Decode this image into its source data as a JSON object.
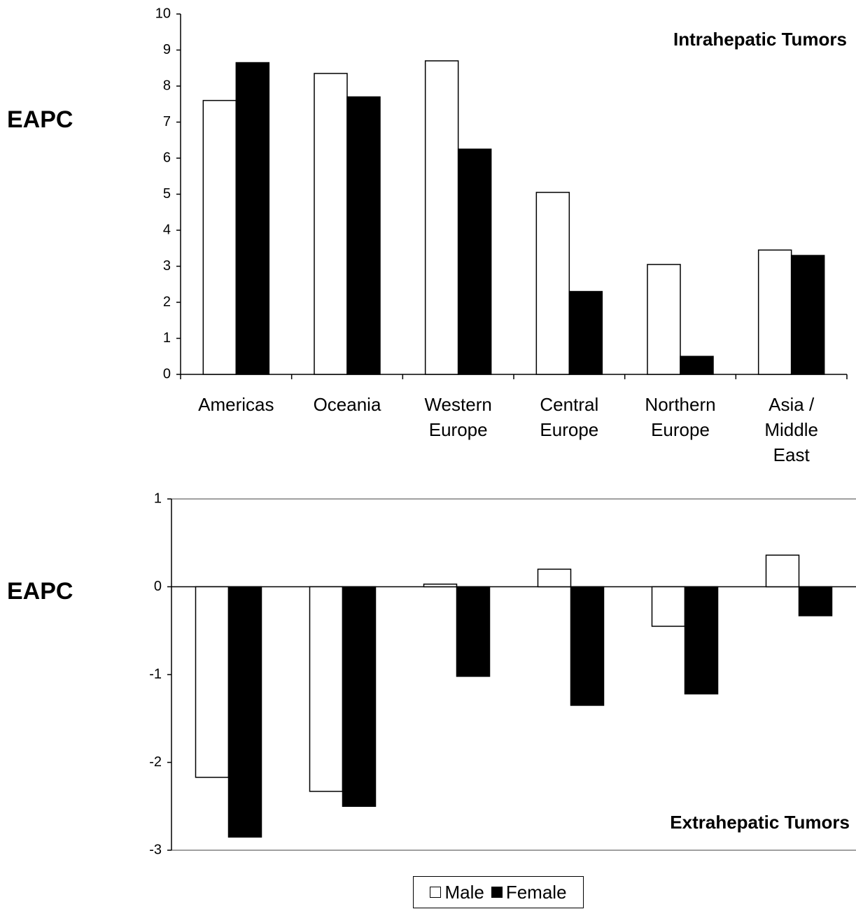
{
  "chart_data": [
    {
      "type": "bar",
      "title": "Intrahepatic Tumors",
      "ylabel": "EAPC",
      "xlabel": "",
      "categories": [
        [
          "Americas"
        ],
        [
          "Oceania"
        ],
        [
          "Western",
          "Europe"
        ],
        [
          "Central",
          "Europe"
        ],
        [
          "Northern",
          "Europe"
        ],
        [
          "Asia /",
          "Middle",
          "East"
        ]
      ],
      "series": [
        {
          "name": "Male",
          "color": "#ffffff",
          "values": [
            7.6,
            8.35,
            8.7,
            5.05,
            3.05,
            3.45
          ]
        },
        {
          "name": "Female",
          "color": "#000000",
          "values": [
            8.65,
            7.7,
            6.25,
            2.3,
            0.5,
            3.3
          ]
        }
      ],
      "ylim": [
        0,
        10
      ],
      "yticks": [
        0,
        1,
        2,
        3,
        4,
        5,
        6,
        7,
        8,
        9,
        10
      ],
      "grid": false,
      "title_position": "top-right"
    },
    {
      "type": "bar",
      "title": "Extrahepatic Tumors",
      "ylabel": "EAPC",
      "xlabel": "",
      "categories": [
        [
          "Americas"
        ],
        [
          "Oceania"
        ],
        [
          "Western",
          "Europe"
        ],
        [
          "Central",
          "Europe"
        ],
        [
          "Northern",
          "Europe"
        ],
        [
          "Asia /",
          "Middle",
          "East"
        ]
      ],
      "series": [
        {
          "name": "Male",
          "color": "#ffffff",
          "values": [
            -2.17,
            -2.33,
            0.03,
            0.2,
            -0.45,
            0.36
          ]
        },
        {
          "name": "Female",
          "color": "#000000",
          "values": [
            -2.85,
            -2.5,
            -1.02,
            -1.35,
            -1.22,
            -0.33
          ]
        }
      ],
      "ylim": [
        -3,
        1
      ],
      "yticks": [
        -3,
        -2,
        -1,
        0,
        1
      ],
      "grid": false,
      "title_position": "bottom-right"
    }
  ],
  "legend": {
    "items": [
      {
        "label": "Male",
        "color": "#ffffff"
      },
      {
        "label": "Female",
        "color": "#000000"
      }
    ]
  }
}
